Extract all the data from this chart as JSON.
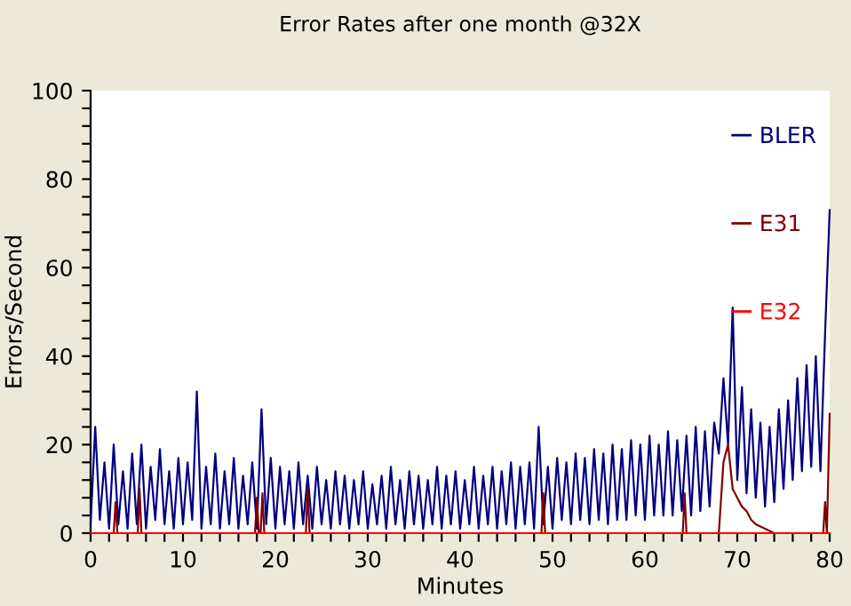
{
  "chart_data": {
    "type": "line",
    "title": "Error Rates after one month @32X",
    "xlabel": "Minutes",
    "ylabel": "Errors/Second",
    "xlim": [
      0,
      80
    ],
    "ylim": [
      0,
      100
    ],
    "xticks": [
      0,
      {
        "value": 2,
        "label": null
      },
      {
        "value": 4,
        "label": null
      },
      {
        "value": 6,
        "label": null
      },
      {
        "value": 8,
        "label": null
      },
      10,
      {
        "value": 12,
        "label": null
      },
      {
        "value": 14,
        "label": null
      },
      {
        "value": 16,
        "label": null
      },
      {
        "value": 18,
        "label": null
      },
      20,
      {
        "value": 22,
        "label": null
      },
      {
        "value": 24,
        "label": null
      },
      {
        "value": 26,
        "label": null
      },
      {
        "value": 28,
        "label": null
      },
      30,
      {
        "value": 32,
        "label": null
      },
      {
        "value": 34,
        "label": null
      },
      {
        "value": 36,
        "label": null
      },
      {
        "value": 38,
        "label": null
      },
      40,
      {
        "value": 42,
        "label": null
      },
      {
        "value": 44,
        "label": null
      },
      {
        "value": 46,
        "label": null
      },
      {
        "value": 48,
        "label": null
      },
      50,
      {
        "value": 52,
        "label": null
      },
      {
        "value": 54,
        "label": null
      },
      {
        "value": 56,
        "label": null
      },
      {
        "value": 58,
        "label": null
      },
      60,
      {
        "value": 62,
        "label": null
      },
      {
        "value": 64,
        "label": null
      },
      {
        "value": 66,
        "label": null
      },
      {
        "value": 68,
        "label": null
      },
      70,
      {
        "value": 72,
        "label": null
      },
      {
        "value": 74,
        "label": null
      },
      {
        "value": 76,
        "label": null
      },
      {
        "value": 78,
        "label": null
      },
      80
    ],
    "yticks": [
      0,
      {
        "value": 4,
        "label": null
      },
      {
        "value": 8,
        "label": null
      },
      {
        "value": 12,
        "label": null
      },
      {
        "value": 16,
        "label": null
      },
      20,
      {
        "value": 24,
        "label": null
      },
      {
        "value": 28,
        "label": null
      },
      {
        "value": 32,
        "label": null
      },
      {
        "value": 36,
        "label": null
      },
      40,
      {
        "value": 44,
        "label": null
      },
      {
        "value": 48,
        "label": null
      },
      {
        "value": 52,
        "label": null
      },
      {
        "value": 56,
        "label": null
      },
      60,
      {
        "value": 64,
        "label": null
      },
      {
        "value": 68,
        "label": null
      },
      {
        "value": 72,
        "label": null
      },
      {
        "value": 76,
        "label": null
      },
      80,
      {
        "value": 84,
        "label": null
      },
      {
        "value": 88,
        "label": null
      },
      {
        "value": 92,
        "label": null
      },
      {
        "value": 96,
        "label": null
      },
      100
    ],
    "grid": false,
    "legend": "top right",
    "marker": "none",
    "line_style": "solid",
    "series": [
      {
        "name": "BLER",
        "color": "#000080",
        "x": [
          0,
          0.5,
          1,
          1.5,
          2,
          2.5,
          3,
          3.5,
          4,
          4.5,
          5,
          5.5,
          6,
          6.5,
          7,
          7.5,
          8,
          8.5,
          9,
          9.5,
          10,
          10.5,
          11,
          11.5,
          12,
          12.5,
          13,
          13.5,
          14,
          14.5,
          15,
          15.5,
          16,
          16.5,
          17,
          17.5,
          18,
          18.5,
          19,
          19.5,
          20,
          20.5,
          21,
          21.5,
          22,
          22.5,
          23,
          23.5,
          24,
          24.5,
          25,
          25.5,
          26,
          26.5,
          27,
          27.5,
          28,
          28.5,
          29,
          29.5,
          30,
          30.5,
          31,
          31.5,
          32,
          32.5,
          33,
          33.5,
          34,
          34.5,
          35,
          35.5,
          36,
          36.5,
          37,
          37.5,
          38,
          38.5,
          39,
          39.5,
          40,
          40.5,
          41,
          41.5,
          42,
          42.5,
          43,
          43.5,
          44,
          44.5,
          45,
          45.5,
          46,
          46.5,
          47,
          47.5,
          48,
          48.5,
          49,
          49.5,
          50,
          50.5,
          51,
          51.5,
          52,
          52.5,
          53,
          53.5,
          54,
          54.5,
          55,
          55.5,
          56,
          56.5,
          57,
          57.5,
          58,
          58.5,
          59,
          59.5,
          60,
          60.5,
          61,
          61.5,
          62,
          62.5,
          63,
          63.5,
          64,
          64.5,
          65,
          65.5,
          66,
          66.5,
          67,
          67.5,
          68,
          68.5,
          69,
          69.5,
          70,
          70.5,
          71,
          71.5,
          72,
          72.5,
          73,
          73.5,
          74,
          74.5,
          75,
          75.5,
          76,
          76.5,
          77,
          77.5,
          78,
          78.5,
          79,
          79.5,
          80
        ],
        "values": [
          2,
          24,
          3,
          16,
          1,
          20,
          2,
          14,
          1,
          18,
          2,
          20,
          1,
          15,
          3,
          19,
          2,
          14,
          1,
          17,
          2,
          16,
          3,
          32,
          1,
          15,
          2,
          18,
          1,
          14,
          2,
          17,
          1,
          13,
          2,
          16,
          1,
          28,
          2,
          17,
          1,
          15,
          2,
          14,
          1,
          16,
          2,
          13,
          1,
          15,
          2,
          12,
          1,
          14,
          2,
          13,
          1,
          12,
          2,
          14,
          1,
          11,
          2,
          13,
          1,
          15,
          2,
          12,
          1,
          14,
          2,
          13,
          1,
          12,
          2,
          15,
          1,
          13,
          2,
          14,
          1,
          12,
          2,
          15,
          1,
          13,
          2,
          15,
          1,
          14,
          2,
          16,
          1,
          15,
          2,
          16,
          1,
          24,
          2,
          15,
          1,
          17,
          3,
          16,
          2,
          18,
          3,
          17,
          2,
          19,
          3,
          18,
          2,
          20,
          3,
          19,
          3,
          21,
          4,
          20,
          3,
          22,
          4,
          20,
          4,
          23,
          4,
          21,
          5,
          22,
          4,
          24,
          5,
          23,
          6,
          25,
          18,
          35,
          20,
          51,
          12,
          33,
          9,
          28,
          8,
          25,
          6,
          24,
          7,
          28,
          10,
          30,
          12,
          35,
          14,
          38,
          15,
          40,
          14,
          45,
          73
        ]
      },
      {
        "name": "E31",
        "color": "#800000",
        "x": [
          0,
          2.5,
          2.7,
          2.9,
          5.1,
          5.3,
          5.5,
          17.8,
          18,
          18.2,
          18.4,
          18.6,
          18.8,
          23.3,
          23.5,
          23.7,
          48.8,
          49,
          49.2,
          64.1,
          64.3,
          64.5,
          68,
          68.5,
          69,
          69.5,
          70,
          70.5,
          71,
          71.5,
          72,
          73,
          74,
          79.3,
          79.5,
          79.7,
          80
        ],
        "values": [
          0,
          0,
          7,
          0,
          0,
          10,
          0,
          0,
          8,
          0,
          0,
          9,
          0,
          0,
          10,
          0,
          0,
          9,
          0,
          0,
          9,
          0,
          0,
          16,
          20,
          10,
          8,
          6,
          5,
          3,
          2,
          1,
          0,
          0,
          7,
          0,
          27
        ]
      },
      {
        "name": "E32",
        "color": "#ff0000",
        "x": [
          0,
          80
        ],
        "values": [
          0,
          0
        ]
      }
    ]
  }
}
